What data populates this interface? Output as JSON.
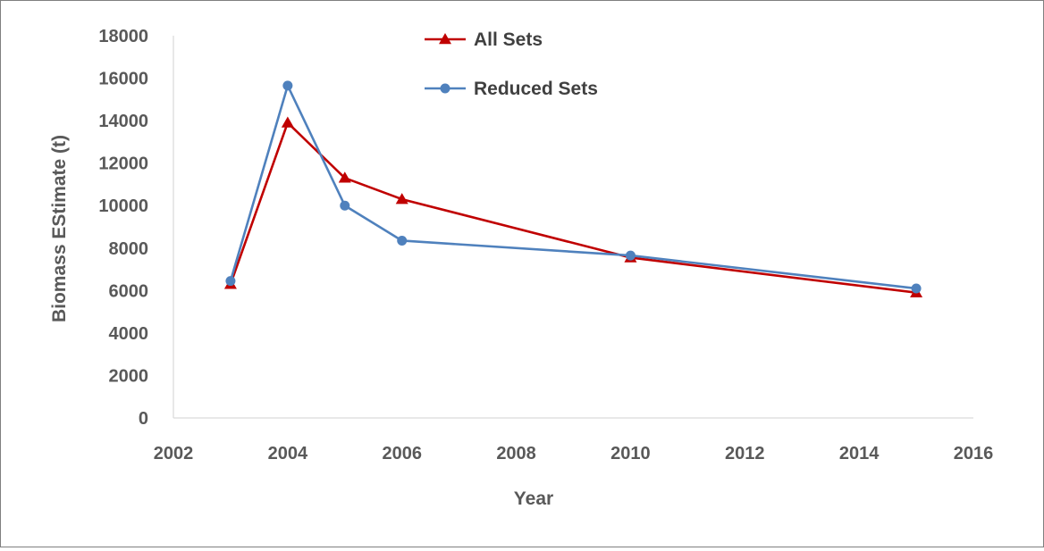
{
  "chart_data": {
    "type": "line",
    "title": "",
    "xlabel": "Year",
    "ylabel": "Biomass EStimate (t)",
    "xlim": [
      2002,
      2016
    ],
    "ylim": [
      0,
      18000
    ],
    "x_ticks": [
      2002,
      2004,
      2006,
      2008,
      2010,
      2012,
      2014,
      2016
    ],
    "y_ticks": [
      0,
      2000,
      4000,
      6000,
      8000,
      10000,
      12000,
      14000,
      16000,
      18000
    ],
    "x_tick_labels": [
      "2002",
      "2004",
      "2006",
      "2008",
      "2010",
      "2012",
      "2014",
      "2016"
    ],
    "y_tick_labels": [
      "0",
      "2000",
      "4000",
      "6000",
      "8000",
      "10000",
      "12000",
      "14000",
      "16000",
      "18000"
    ],
    "grid": false,
    "legend_position": "top-center",
    "series": [
      {
        "name": "All Sets",
        "color": "#c00000",
        "marker": "triangle",
        "x": [
          2003,
          2004,
          2005,
          2006,
          2010,
          2015
        ],
        "y": [
          6300,
          13900,
          11300,
          10300,
          7550,
          5900
        ]
      },
      {
        "name": "Reduced Sets",
        "color": "#4f81bd",
        "marker": "circle",
        "x": [
          2003,
          2004,
          2005,
          2006,
          2010,
          2015
        ],
        "y": [
          6450,
          15650,
          10000,
          8350,
          7650,
          6100
        ]
      }
    ]
  }
}
